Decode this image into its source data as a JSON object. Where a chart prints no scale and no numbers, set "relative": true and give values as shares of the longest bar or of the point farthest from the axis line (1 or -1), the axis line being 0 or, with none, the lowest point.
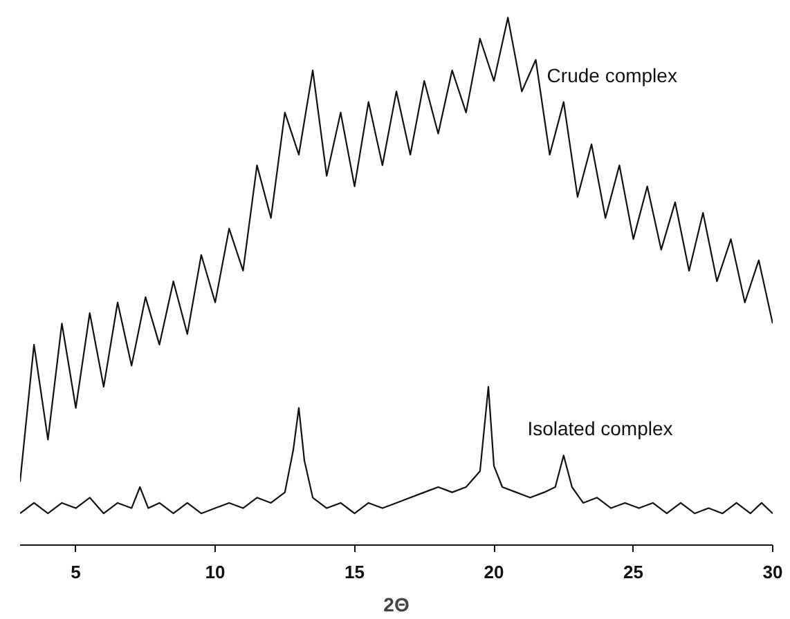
{
  "chart_data": {
    "type": "line",
    "relative": true,
    "xlabel": "2Θ",
    "xlim": [
      3,
      30
    ],
    "xticks": [
      5,
      10,
      15,
      20,
      25,
      30
    ],
    "grid": false,
    "legend": false,
    "marker": "none",
    "line_style": "solid",
    "series": [
      {
        "name": "Crude complex",
        "color": "#111111",
        "x": [
          3.0,
          3.5,
          4.0,
          4.5,
          5.0,
          5.5,
          6.0,
          6.5,
          7.0,
          7.5,
          8.0,
          8.5,
          9.0,
          9.5,
          10.0,
          10.5,
          11.0,
          11.5,
          12.0,
          12.5,
          13.0,
          13.5,
          14.0,
          14.5,
          15.0,
          15.5,
          16.0,
          16.5,
          17.0,
          17.5,
          18.0,
          18.5,
          19.0,
          19.5,
          20.0,
          20.5,
          21.0,
          21.5,
          22.0,
          22.5,
          23.0,
          23.5,
          24.0,
          24.5,
          25.0,
          25.5,
          26.0,
          26.5,
          27.0,
          27.5,
          28.0,
          28.5,
          29.0,
          29.5,
          30.0
        ],
        "values": [
          0.12,
          0.38,
          0.2,
          0.42,
          0.26,
          0.44,
          0.3,
          0.46,
          0.34,
          0.47,
          0.38,
          0.5,
          0.4,
          0.55,
          0.46,
          0.6,
          0.52,
          0.72,
          0.62,
          0.82,
          0.74,
          0.9,
          0.7,
          0.82,
          0.68,
          0.84,
          0.72,
          0.86,
          0.74,
          0.88,
          0.78,
          0.9,
          0.82,
          0.96,
          0.88,
          1.0,
          0.86,
          0.92,
          0.74,
          0.84,
          0.66,
          0.76,
          0.62,
          0.72,
          0.58,
          0.68,
          0.56,
          0.65,
          0.52,
          0.63,
          0.5,
          0.58,
          0.46,
          0.54,
          0.42
        ]
      },
      {
        "name": "Isolated complex",
        "color": "#111111",
        "x": [
          3.0,
          3.5,
          4.0,
          4.5,
          5.0,
          5.5,
          6.0,
          6.5,
          7.0,
          7.3,
          7.6,
          8.0,
          8.5,
          9.0,
          9.5,
          10.0,
          10.5,
          11.0,
          11.5,
          12.0,
          12.5,
          12.8,
          13.0,
          13.2,
          13.5,
          14.0,
          14.5,
          15.0,
          15.5,
          16.0,
          16.5,
          17.0,
          17.5,
          18.0,
          18.5,
          19.0,
          19.5,
          19.8,
          20.0,
          20.3,
          20.8,
          21.3,
          21.8,
          22.2,
          22.5,
          22.8,
          23.2,
          23.7,
          24.2,
          24.7,
          25.2,
          25.7,
          26.2,
          26.7,
          27.2,
          27.7,
          28.2,
          28.7,
          29.2,
          29.6,
          30.0
        ],
        "values": [
          0.06,
          0.08,
          0.06,
          0.08,
          0.07,
          0.09,
          0.06,
          0.08,
          0.07,
          0.11,
          0.07,
          0.08,
          0.06,
          0.08,
          0.06,
          0.07,
          0.08,
          0.07,
          0.09,
          0.08,
          0.1,
          0.18,
          0.26,
          0.16,
          0.09,
          0.07,
          0.08,
          0.06,
          0.08,
          0.07,
          0.08,
          0.09,
          0.1,
          0.11,
          0.1,
          0.11,
          0.14,
          0.3,
          0.15,
          0.11,
          0.1,
          0.09,
          0.1,
          0.11,
          0.17,
          0.11,
          0.08,
          0.09,
          0.07,
          0.08,
          0.07,
          0.08,
          0.06,
          0.08,
          0.06,
          0.07,
          0.06,
          0.08,
          0.06,
          0.08,
          0.06
        ]
      }
    ]
  }
}
